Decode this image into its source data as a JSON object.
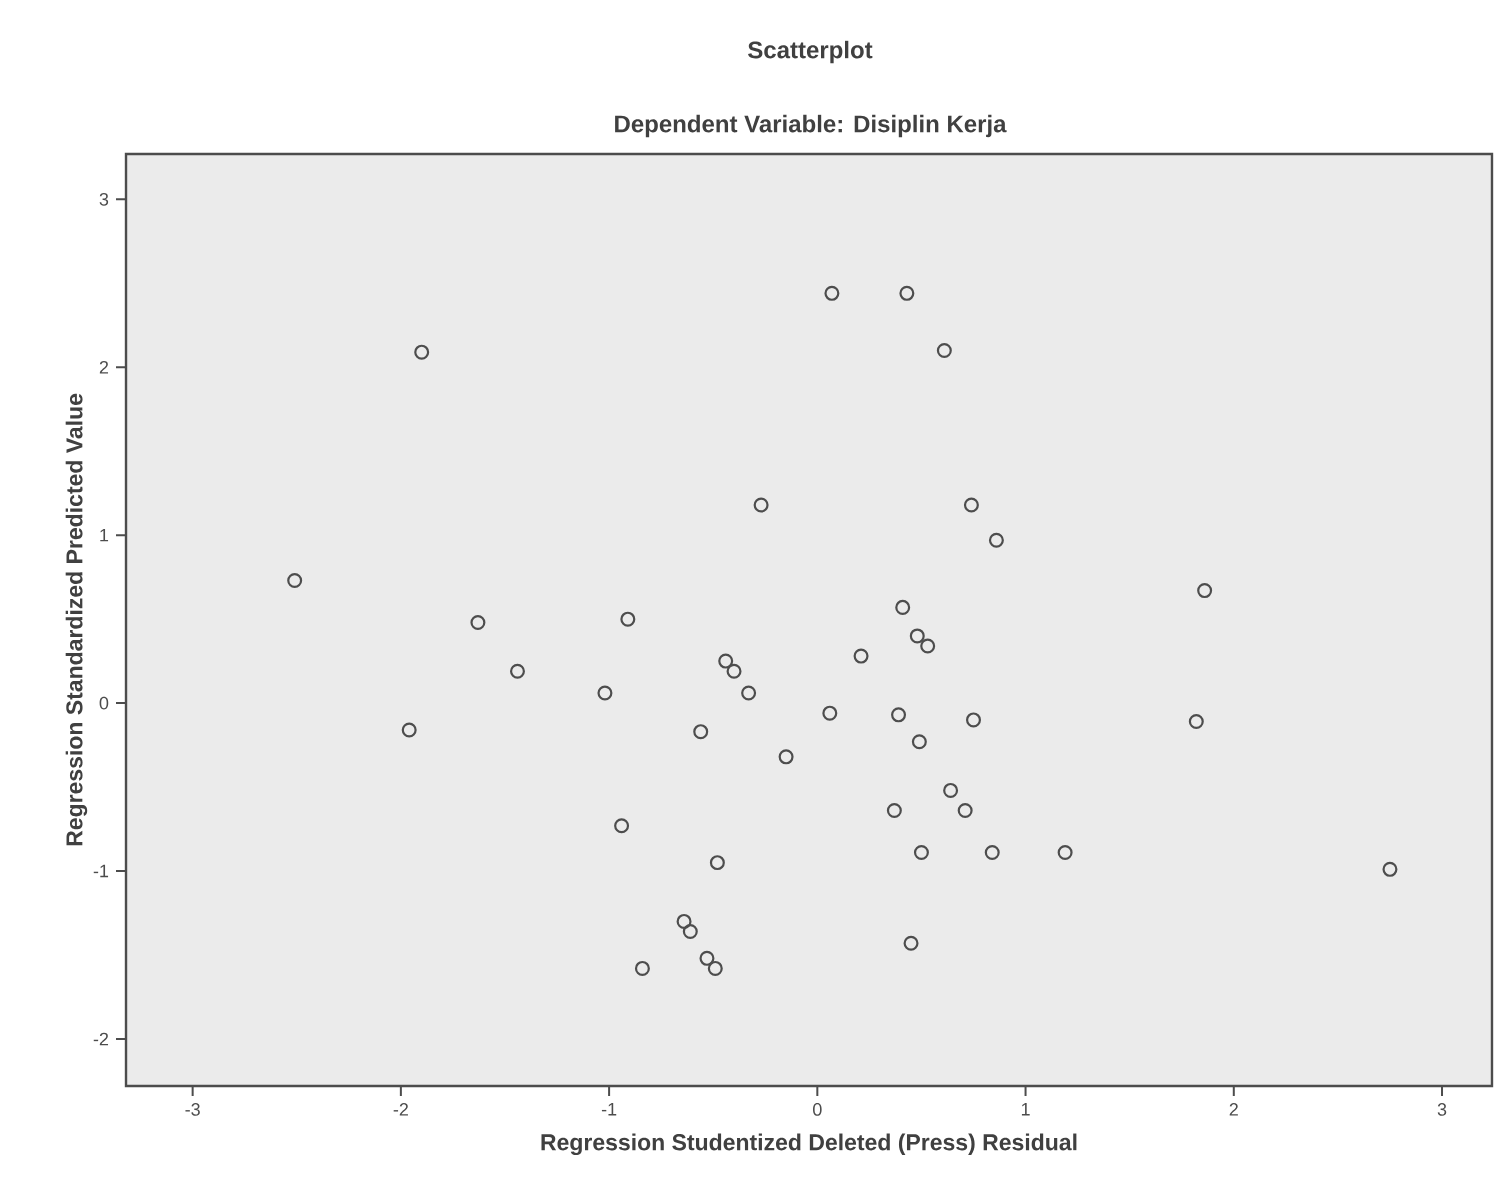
{
  "chart_data": {
    "type": "scatter",
    "title": "Scatterplot",
    "subtitle": "Dependent Variable: Disiplin Kerja",
    "xlabel": "Regression Studentized Deleted (Press) Residual",
    "ylabel": "Regression Standardized Predicted Value",
    "x": [
      -1.9,
      -0.27,
      -2.51,
      -1.63,
      -0.91,
      -0.44,
      -0.4,
      0.07,
      0.43,
      0.61,
      0.74,
      0.86,
      1.86,
      0.41,
      0.48,
      0.53,
      0.21,
      -1.44,
      -1.02,
      -0.33,
      -1.96,
      -0.56,
      -0.15,
      -0.94,
      -0.48,
      -0.64,
      -0.61,
      -0.53,
      -0.49,
      -0.84,
      0.06,
      0.39,
      0.75,
      1.82,
      0.49,
      0.64,
      0.37,
      0.71,
      0.5,
      0.84,
      1.19,
      2.75,
      0.45
    ],
    "values": [
      2.09,
      1.18,
      0.73,
      0.48,
      0.5,
      0.25,
      0.19,
      2.44,
      2.44,
      2.1,
      1.18,
      0.97,
      0.67,
      0.57,
      0.4,
      0.34,
      0.28,
      0.19,
      0.06,
      0.06,
      -0.16,
      -0.17,
      -0.32,
      -0.73,
      -0.95,
      -1.3,
      -1.36,
      -1.52,
      -1.58,
      -1.58,
      -0.06,
      -0.07,
      -0.1,
      -0.11,
      -0.23,
      -0.52,
      -0.64,
      -0.64,
      -0.89,
      -0.89,
      -0.89,
      -0.99,
      -1.43
    ],
    "color": "#4d4d4d",
    "marker": "circle",
    "xlim": [
      -3.32,
      3.24
    ],
    "ylim": [
      -2.28,
      3.27
    ],
    "xticks": [
      -3,
      -2,
      -1,
      0,
      1,
      2,
      3
    ],
    "yticks": [
      -2,
      -1,
      0,
      1,
      2,
      3
    ]
  }
}
